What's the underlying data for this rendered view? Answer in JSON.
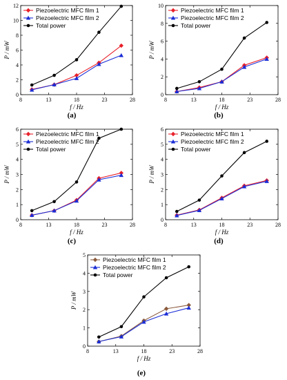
{
  "chart_data": [
    {
      "type": "line",
      "panel_label": "(a)",
      "xlabel": "f / Hz",
      "ylabel": "P / mW",
      "xlim": [
        8,
        28
      ],
      "ylim": [
        0,
        12
      ],
      "xticks": [
        8,
        13,
        18,
        23,
        28
      ],
      "yticks": [
        0,
        2,
        4,
        6,
        8,
        10,
        12
      ],
      "legend_position": "top-left",
      "x": [
        10,
        14,
        18,
        22,
        26
      ],
      "series": [
        {
          "name": "Piezoelectric MFC film 1",
          "color": "#e8202a",
          "marker": "diamond",
          "values": [
            0.7,
            1.35,
            2.6,
            4.3,
            6.6
          ]
        },
        {
          "name": "Piezoelectric MFC film 2",
          "color": "#1a2dd6",
          "marker": "triangle",
          "values": [
            0.65,
            1.35,
            2.2,
            4.1,
            5.3
          ]
        },
        {
          "name": "Total power",
          "color": "#000000",
          "marker": "circle",
          "values": [
            1.3,
            2.6,
            4.7,
            8.4,
            11.9
          ]
        }
      ]
    },
    {
      "type": "line",
      "panel_label": "(b)",
      "xlabel": "f / Hz",
      "ylabel": "P / mW",
      "xlim": [
        8,
        28
      ],
      "ylim": [
        0,
        10
      ],
      "xticks": [
        8,
        13,
        18,
        23,
        28
      ],
      "yticks": [
        0,
        2,
        4,
        6,
        8,
        10
      ],
      "legend_position": "top-left",
      "x": [
        10,
        14,
        18,
        22,
        26
      ],
      "series": [
        {
          "name": "Piezoelectric MFC film 1",
          "color": "#e8202a",
          "marker": "diamond",
          "values": [
            0.35,
            0.8,
            1.45,
            3.3,
            4.15
          ]
        },
        {
          "name": "Piezoelectric MFC film 2",
          "color": "#1a2dd6",
          "marker": "triangle",
          "values": [
            0.35,
            0.7,
            1.45,
            3.1,
            4.0
          ]
        },
        {
          "name": "Total power",
          "color": "#000000",
          "marker": "circle",
          "values": [
            0.7,
            1.45,
            2.85,
            6.35,
            8.1
          ]
        }
      ]
    },
    {
      "type": "line",
      "panel_label": "(c)",
      "xlabel": "f / Hz",
      "ylabel": "P / mW",
      "xlim": [
        8,
        28
      ],
      "ylim": [
        0,
        6
      ],
      "xticks": [
        8,
        13,
        18,
        23,
        28
      ],
      "yticks": [
        0,
        1,
        2,
        3,
        4,
        5,
        6
      ],
      "legend_position": "top-left",
      "x": [
        10,
        14,
        18,
        22,
        26
      ],
      "series": [
        {
          "name": "Piezoelectric MFC film 1",
          "color": "#e8202a",
          "marker": "diamond",
          "values": [
            0.3,
            0.6,
            1.3,
            2.75,
            3.1
          ]
        },
        {
          "name": "Piezoelectric MFC film 2",
          "color": "#1a2dd6",
          "marker": "triangle",
          "values": [
            0.3,
            0.6,
            1.25,
            2.65,
            2.95
          ]
        },
        {
          "name": "Total power",
          "color": "#000000",
          "marker": "circle",
          "values": [
            0.6,
            1.2,
            2.5,
            5.4,
            6.0
          ]
        }
      ]
    },
    {
      "type": "line",
      "panel_label": "(d)",
      "xlabel": "f / Hz",
      "ylabel": "P / mW",
      "xlim": [
        8,
        28
      ],
      "ylim": [
        0,
        6
      ],
      "xticks": [
        8,
        13,
        18,
        23,
        28
      ],
      "yticks": [
        0,
        1,
        2,
        3,
        4,
        5,
        6
      ],
      "legend_position": "top-left",
      "x": [
        10,
        14,
        18,
        22,
        26
      ],
      "series": [
        {
          "name": "Piezoelectric MFC film 1",
          "color": "#e8202a",
          "marker": "diamond",
          "values": [
            0.3,
            0.65,
            1.45,
            2.25,
            2.6
          ]
        },
        {
          "name": "Piezoelectric MFC film 2",
          "color": "#1a2dd6",
          "marker": "triangle",
          "values": [
            0.28,
            0.62,
            1.4,
            2.2,
            2.55
          ]
        },
        {
          "name": "Total power",
          "color": "#000000",
          "marker": "circle",
          "values": [
            0.55,
            1.3,
            2.9,
            4.45,
            5.2
          ]
        }
      ]
    },
    {
      "type": "line",
      "panel_label": "(e)",
      "xlabel": "f / Hz",
      "ylabel": "P / mW",
      "xlim": [
        8,
        28
      ],
      "ylim": [
        0,
        5
      ],
      "xticks": [
        8,
        13,
        18,
        23,
        28
      ],
      "yticks": [
        0,
        1,
        2,
        3,
        4,
        5
      ],
      "legend_position": "top-left",
      "x": [
        10,
        14,
        18,
        22,
        26
      ],
      "series": [
        {
          "name": "Piezoelectric MFC film 1",
          "color": "#8a5a3c",
          "marker": "diamond",
          "values": [
            0.25,
            0.55,
            1.4,
            2.05,
            2.25
          ]
        },
        {
          "name": "Piezoelectric MFC film 2",
          "color": "#1a2dd6",
          "marker": "triangle",
          "values": [
            0.25,
            0.52,
            1.33,
            1.78,
            2.1
          ]
        },
        {
          "name": "Total power",
          "color": "#000000",
          "marker": "circle",
          "values": [
            0.5,
            1.07,
            2.7,
            3.75,
            4.35
          ]
        }
      ]
    }
  ]
}
